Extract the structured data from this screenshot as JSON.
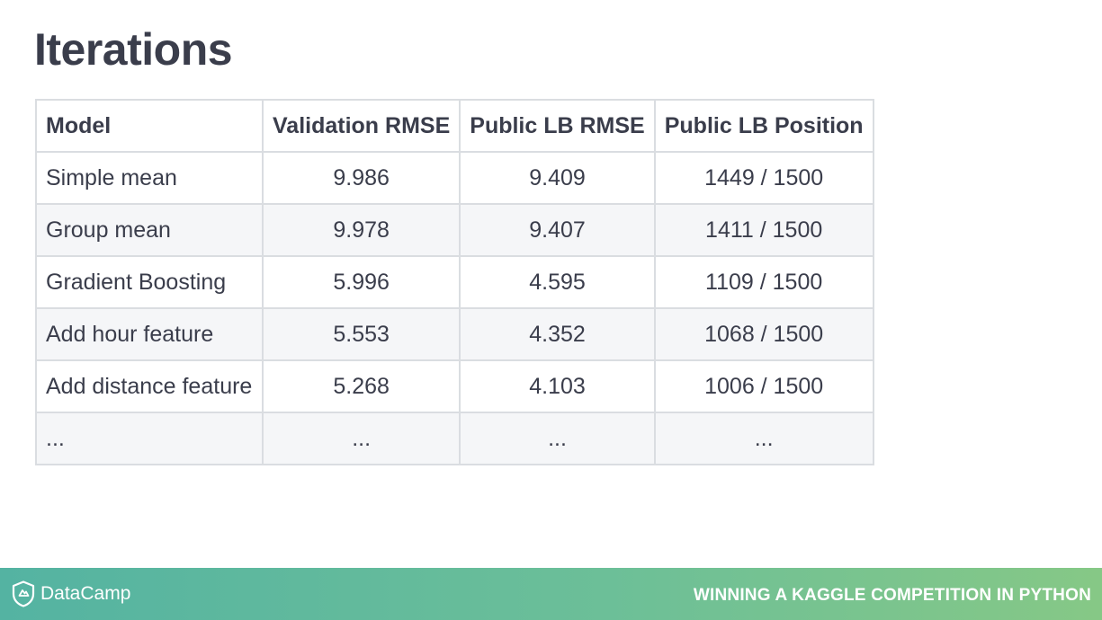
{
  "slide": {
    "title": "Iterations"
  },
  "table": {
    "headers": [
      "Model",
      "Validation RMSE",
      "Public LB RMSE",
      "Public LB Position"
    ],
    "rows": [
      [
        "Simple mean",
        "9.986",
        "9.409",
        "1449 / 1500"
      ],
      [
        "Group mean",
        "9.978",
        "9.407",
        "1411 / 1500"
      ],
      [
        "Gradient Boosting",
        "5.996",
        "4.595",
        "1109 / 1500"
      ],
      [
        "Add hour feature",
        "5.553",
        "4.352",
        "1068 / 1500"
      ],
      [
        "Add distance feature",
        "5.268",
        "4.103",
        "1006 / 1500"
      ],
      [
        "...",
        "...",
        "...",
        "..."
      ]
    ]
  },
  "footer": {
    "brand": "DataCamp",
    "brand_icon": "datacamp-logo-icon",
    "course": "WINNING A KAGGLE COMPETITION IN PYTHON"
  }
}
